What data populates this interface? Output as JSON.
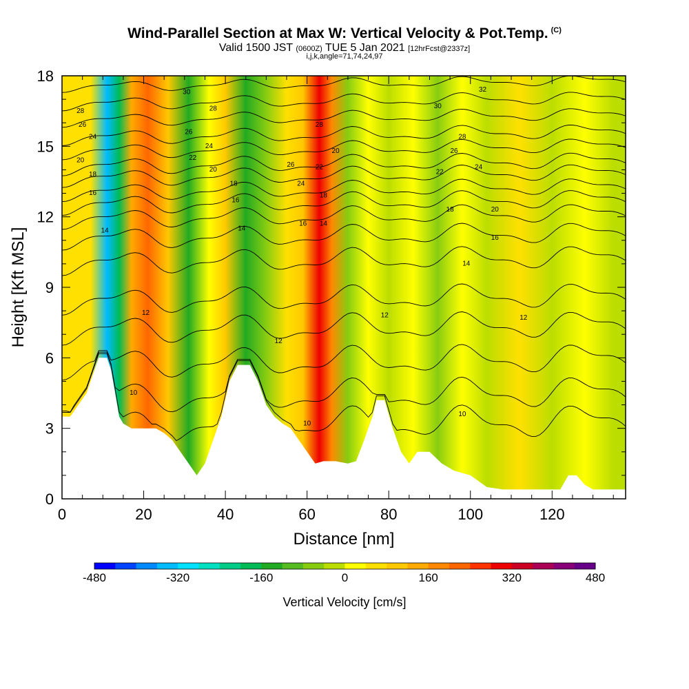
{
  "header": {
    "title": "Wind-Parallel Section at Max W: Vertical Velocity & Pot.Temp.",
    "copyright": "(C)",
    "subtitle_main": "Valid 1500 JST",
    "subtitle_utc": "(0600Z)",
    "subtitle_date": "TUE 5 Jan 2021",
    "subtitle_fcst": "[12hrFcst@2337z]",
    "subtitle2": "i,j,k,angle=71,74,24,97"
  },
  "chart_data": {
    "type": "heatmap",
    "title": "Wind-Parallel Section at Max W: Vertical Velocity & Pot.Temp.",
    "xlabel": "Distance [nm]",
    "ylabel": "Height [Kft MSL]",
    "xlim": [
      0,
      138
    ],
    "ylim": [
      0,
      18
    ],
    "x_ticks": [
      "0",
      "20",
      "40",
      "60",
      "80",
      "100",
      "120"
    ],
    "x_tick_values": [
      0,
      20,
      40,
      60,
      80,
      100,
      120
    ],
    "y_ticks": [
      "0",
      "3",
      "6",
      "9",
      "12",
      "15",
      "18"
    ],
    "y_tick_values": [
      0,
      3,
      6,
      9,
      12,
      15,
      18
    ],
    "colorbar": {
      "label": "Vertical Velocity [cm/s]",
      "min": -480,
      "max": 480,
      "tick_labels": [
        "-480",
        "-320",
        "-160",
        "0",
        "160",
        "320",
        "480"
      ],
      "tick_values": [
        -480,
        -320,
        -160,
        0,
        160,
        320,
        480
      ],
      "colors": [
        "#0000ff",
        "#0044ff",
        "#0088ff",
        "#00bbff",
        "#00e0ff",
        "#00e0c0",
        "#00cc88",
        "#00bb55",
        "#22aa22",
        "#55bb22",
        "#88cc11",
        "#bbdd00",
        "#ffff00",
        "#ffe000",
        "#ffc800",
        "#ffaa00",
        "#ff8800",
        "#ff6600",
        "#ff3300",
        "#ee0000",
        "#cc0022",
        "#aa0055",
        "#880077",
        "#660088"
      ]
    },
    "velocity_columns": [
      {
        "x": 2,
        "w": 40
      },
      {
        "x": 7,
        "w": 60
      },
      {
        "x": 11,
        "w": -340
      },
      {
        "x": 14,
        "w": -200
      },
      {
        "x": 17,
        "w": 120
      },
      {
        "x": 21,
        "w": 220
      },
      {
        "x": 26,
        "w": 80
      },
      {
        "x": 31,
        "w": -140
      },
      {
        "x": 36,
        "w": 20
      },
      {
        "x": 40,
        "w": 80
      },
      {
        "x": 45,
        "w": -140
      },
      {
        "x": 50,
        "w": -80
      },
      {
        "x": 55,
        "w": 60
      },
      {
        "x": 59,
        "w": 100
      },
      {
        "x": 63,
        "w": 300
      },
      {
        "x": 66,
        "w": 160
      },
      {
        "x": 70,
        "w": -60
      },
      {
        "x": 75,
        "w": 10
      },
      {
        "x": 80,
        "w": -30
      },
      {
        "x": 86,
        "w": 20
      },
      {
        "x": 92,
        "w": -60
      },
      {
        "x": 98,
        "w": 20
      },
      {
        "x": 104,
        "w": -20
      },
      {
        "x": 112,
        "w": 40
      },
      {
        "x": 120,
        "w": -10
      },
      {
        "x": 128,
        "w": 20
      },
      {
        "x": 135,
        "w": -30
      }
    ],
    "terrain": [
      [
        0,
        3.5
      ],
      [
        2,
        3.5
      ],
      [
        4,
        4.0
      ],
      [
        6,
        4.5
      ],
      [
        7,
        5.0
      ],
      [
        8,
        5.5
      ],
      [
        9,
        6.0
      ],
      [
        11,
        6.0
      ],
      [
        12,
        5.5
      ],
      [
        13,
        4.5
      ],
      [
        14,
        3.5
      ],
      [
        15,
        3.2
      ],
      [
        17,
        3.0
      ],
      [
        19,
        3.0
      ],
      [
        21,
        3.0
      ],
      [
        23,
        3.0
      ],
      [
        25,
        2.8
      ],
      [
        27,
        2.5
      ],
      [
        29,
        2.0
      ],
      [
        31,
        1.5
      ],
      [
        33,
        1.0
      ],
      [
        35,
        1.5
      ],
      [
        37,
        2.5
      ],
      [
        39,
        3.5
      ],
      [
        41,
        5.0
      ],
      [
        43,
        5.7
      ],
      [
        46,
        5.7
      ],
      [
        48,
        5.0
      ],
      [
        50,
        4.0
      ],
      [
        52,
        3.5
      ],
      [
        54,
        3.2
      ],
      [
        56,
        3.0
      ],
      [
        58,
        2.5
      ],
      [
        60,
        2.0
      ],
      [
        62,
        1.5
      ],
      [
        64,
        1.6
      ],
      [
        67,
        1.6
      ],
      [
        70,
        1.5
      ],
      [
        72,
        1.6
      ],
      [
        74,
        2.5
      ],
      [
        76,
        3.5
      ],
      [
        77,
        4.2
      ],
      [
        79,
        4.2
      ],
      [
        81,
        3.0
      ],
      [
        83,
        2.0
      ],
      [
        85,
        1.5
      ],
      [
        87,
        2.0
      ],
      [
        90,
        2.0
      ],
      [
        93,
        1.5
      ],
      [
        96,
        1.2
      ],
      [
        100,
        1.0
      ],
      [
        104,
        0.5
      ],
      [
        108,
        0.4
      ],
      [
        116,
        0.4
      ],
      [
        122,
        0.4
      ],
      [
        124,
        1.0
      ],
      [
        126,
        1.0
      ],
      [
        128,
        0.6
      ],
      [
        130,
        0.4
      ],
      [
        138,
        0.4
      ]
    ],
    "theta_contours": [
      {
        "label": "10",
        "base": 3.6,
        "amp": 1.6
      },
      {
        "label": "10",
        "base": 4.8,
        "amp": 1.5
      },
      {
        "label": "12",
        "base": 6.2,
        "amp": 1.4
      },
      {
        "label": "12",
        "base": 7.6,
        "amp": 1.3
      },
      {
        "label": "12",
        "base": 8.8,
        "amp": 1.2
      },
      {
        "label": "14",
        "base": 10.4,
        "amp": 1.1
      },
      {
        "label": "14",
        "base": 11.4,
        "amp": 1.0
      },
      {
        "label": "16",
        "base": 12.2,
        "amp": 0.9
      },
      {
        "label": "16",
        "base": 12.8,
        "amp": 0.9
      },
      {
        "label": "18",
        "base": 13.3,
        "amp": 0.8
      },
      {
        "label": "20",
        "base": 13.9,
        "amp": 0.8
      },
      {
        "label": "22",
        "base": 14.4,
        "amp": 0.8
      },
      {
        "label": "24",
        "base": 15.0,
        "amp": 0.7
      },
      {
        "label": "26",
        "base": 15.6,
        "amp": 0.7
      },
      {
        "label": "28",
        "base": 16.3,
        "amp": 0.6
      },
      {
        "label": "30",
        "base": 17.0,
        "amp": 0.6
      },
      {
        "label": "32",
        "base": 17.7,
        "amp": 0.5
      }
    ],
    "contour_labels": [
      {
        "text": "28",
        "x": 4.5,
        "y": 16.5
      },
      {
        "text": "26",
        "x": 5,
        "y": 15.9
      },
      {
        "text": "24",
        "x": 7.5,
        "y": 15.4
      },
      {
        "text": "20",
        "x": 4.5,
        "y": 14.4
      },
      {
        "text": "18",
        "x": 7.5,
        "y": 13.8
      },
      {
        "text": "16",
        "x": 7.5,
        "y": 13.0
      },
      {
        "text": "14",
        "x": 10.5,
        "y": 11.4
      },
      {
        "text": "12",
        "x": 20.5,
        "y": 7.9
      },
      {
        "text": "10",
        "x": 17.5,
        "y": 4.5
      },
      {
        "text": "30",
        "x": 30.5,
        "y": 17.3
      },
      {
        "text": "28",
        "x": 37,
        "y": 16.6
      },
      {
        "text": "26",
        "x": 31,
        "y": 15.6
      },
      {
        "text": "24",
        "x": 36,
        "y": 15.0
      },
      {
        "text": "22",
        "x": 32,
        "y": 14.5
      },
      {
        "text": "20",
        "x": 37,
        "y": 14.0
      },
      {
        "text": "18",
        "x": 42,
        "y": 13.4
      },
      {
        "text": "16",
        "x": 42.5,
        "y": 12.7
      },
      {
        "text": "14",
        "x": 44,
        "y": 11.5
      },
      {
        "text": "12",
        "x": 53,
        "y": 6.7
      },
      {
        "text": "10",
        "x": 60,
        "y": 3.2
      },
      {
        "text": "28",
        "x": 63,
        "y": 15.9
      },
      {
        "text": "26",
        "x": 56,
        "y": 14.2
      },
      {
        "text": "24",
        "x": 58.5,
        "y": 13.4
      },
      {
        "text": "22",
        "x": 63,
        "y": 14.1
      },
      {
        "text": "20",
        "x": 67,
        "y": 14.8
      },
      {
        "text": "18",
        "x": 64,
        "y": 12.9
      },
      {
        "text": "16",
        "x": 59,
        "y": 11.7
      },
      {
        "text": "14",
        "x": 64,
        "y": 11.7
      },
      {
        "text": "32",
        "x": 103,
        "y": 17.4
      },
      {
        "text": "30",
        "x": 92,
        "y": 16.7
      },
      {
        "text": "28",
        "x": 98,
        "y": 15.4
      },
      {
        "text": "26",
        "x": 96,
        "y": 14.8
      },
      {
        "text": "24",
        "x": 102,
        "y": 14.1
      },
      {
        "text": "22",
        "x": 92.5,
        "y": 13.9
      },
      {
        "text": "20",
        "x": 106,
        "y": 12.3
      },
      {
        "text": "18",
        "x": 95,
        "y": 12.3
      },
      {
        "text": "16",
        "x": 106,
        "y": 11.1
      },
      {
        "text": "14",
        "x": 99,
        "y": 10.0
      },
      {
        "text": "12",
        "x": 79,
        "y": 7.8
      },
      {
        "text": "12",
        "x": 113,
        "y": 7.7
      },
      {
        "text": "10",
        "x": 98,
        "y": 3.6
      }
    ]
  }
}
